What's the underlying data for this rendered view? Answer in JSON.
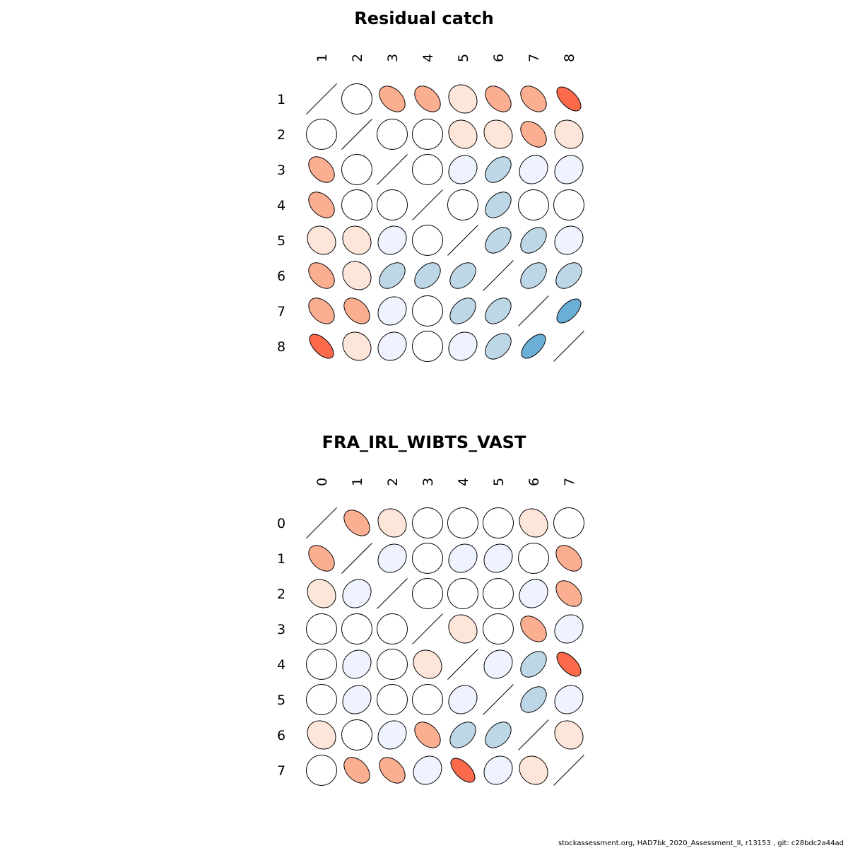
{
  "chart_data": [
    {
      "type": "heatmap",
      "subtype": "correlation-ellipse",
      "title": "Residual catch",
      "labels": [
        "1",
        "2",
        "3",
        "4",
        "5",
        "6",
        "7",
        "8"
      ],
      "matrix": [
        [
          1.0,
          0.0,
          0.4,
          0.4,
          0.15,
          0.4,
          0.4,
          0.6
        ],
        [
          0.0,
          1.0,
          0.0,
          0.0,
          0.15,
          0.15,
          0.4,
          0.15
        ],
        [
          0.4,
          0.0,
          1.0,
          0.0,
          0.15,
          0.4,
          0.15,
          0.15
        ],
        [
          0.4,
          0.0,
          0.0,
          1.0,
          0.0,
          0.4,
          0.0,
          0.0
        ],
        [
          0.15,
          0.15,
          0.15,
          0.0,
          1.0,
          0.4,
          0.4,
          0.15
        ],
        [
          0.4,
          0.15,
          0.4,
          0.4,
          0.4,
          1.0,
          0.4,
          0.4
        ],
        [
          0.4,
          0.4,
          0.15,
          0.0,
          0.4,
          0.4,
          1.0,
          0.6
        ],
        [
          0.6,
          0.15,
          0.15,
          0.0,
          0.15,
          0.4,
          0.6,
          1.0
        ]
      ],
      "color_class": [
        [
          0,
          0,
          2,
          2,
          1,
          2,
          2,
          3
        ],
        [
          0,
          0,
          0,
          0,
          1,
          1,
          2,
          1
        ],
        [
          2,
          0,
          0,
          0,
          -1,
          -2,
          -1,
          -1
        ],
        [
          2,
          0,
          0,
          0,
          0,
          -2,
          0,
          0
        ],
        [
          1,
          1,
          -1,
          0,
          0,
          -2,
          -2,
          -1
        ],
        [
          2,
          1,
          -2,
          -2,
          -2,
          0,
          -2,
          -2
        ],
        [
          2,
          2,
          -1,
          0,
          -2,
          -2,
          0,
          -3
        ],
        [
          3,
          1,
          -1,
          0,
          -1,
          -2,
          -3,
          0
        ]
      ],
      "legend": "none",
      "grid": false
    },
    {
      "type": "heatmap",
      "subtype": "correlation-ellipse",
      "title": "FRA_IRL_WIBTS_VAST",
      "labels": [
        "0",
        "1",
        "2",
        "3",
        "4",
        "5",
        "6",
        "7"
      ],
      "matrix": [
        [
          1.0,
          0.4,
          0.15,
          0.0,
          0.0,
          0.0,
          0.15,
          0.0
        ],
        [
          0.4,
          1.0,
          0.15,
          0.0,
          0.15,
          0.15,
          0.0,
          0.4
        ],
        [
          0.15,
          0.15,
          1.0,
          0.0,
          0.0,
          0.0,
          0.15,
          0.4
        ],
        [
          0.0,
          0.0,
          0.0,
          1.0,
          0.15,
          0.0,
          0.4,
          0.15
        ],
        [
          0.0,
          0.15,
          0.0,
          0.15,
          1.0,
          0.15,
          0.4,
          0.6
        ],
        [
          0.0,
          0.15,
          0.0,
          0.0,
          0.15,
          1.0,
          0.4,
          0.15
        ],
        [
          0.15,
          0.0,
          0.15,
          0.4,
          0.4,
          0.4,
          1.0,
          0.15
        ],
        [
          0.0,
          0.4,
          0.4,
          0.15,
          0.6,
          0.15,
          0.15,
          1.0
        ]
      ],
      "color_class": [
        [
          0,
          2,
          1,
          0,
          0,
          0,
          1,
          0
        ],
        [
          2,
          0,
          -1,
          0,
          -1,
          -1,
          0,
          2
        ],
        [
          1,
          -1,
          0,
          0,
          0,
          0,
          -1,
          2
        ],
        [
          0,
          0,
          0,
          0,
          1,
          0,
          2,
          -1
        ],
        [
          0,
          -1,
          0,
          1,
          0,
          -1,
          -2,
          3
        ],
        [
          0,
          -1,
          0,
          0,
          -1,
          0,
          -2,
          -1
        ],
        [
          1,
          0,
          -1,
          2,
          -2,
          -2,
          0,
          1
        ],
        [
          0,
          2,
          2,
          -1,
          3,
          -1,
          1,
          0
        ]
      ],
      "legend": "none",
      "grid": false
    }
  ],
  "palette": {
    "3": "#fb6a4a",
    "2": "#fcae91",
    "1": "#fee5d9",
    "0": "#ffffff",
    "-1": "#eff3ff",
    "-2": "#bdd7e7",
    "-3": "#6baed6"
  },
  "footer": {
    "text": "stockassessment.org, HAD7bk_2020_Assessment_II, r13153 , git: c28bdc2a44ad"
  }
}
